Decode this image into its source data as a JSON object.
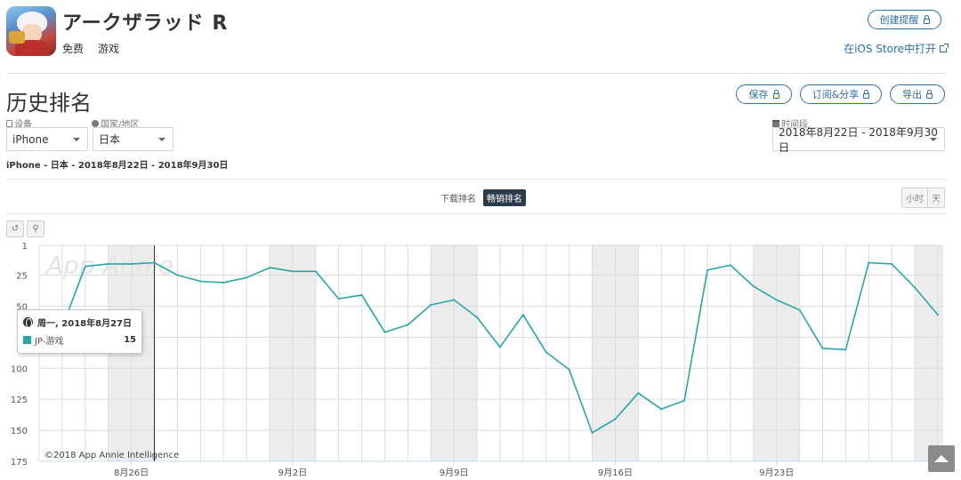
{
  "app": {
    "name": "アークザラッド R",
    "price": "免费",
    "category": "游戏"
  },
  "header": {
    "alert_label": "创建提醒",
    "ios_link": "在iOS Store中打开"
  },
  "section": {
    "title": "历史排名",
    "save_label": "保存",
    "subscribe_label": "订阅&分享",
    "export_label": "导出"
  },
  "filters": {
    "device_label": "设备",
    "device_value": "iPhone",
    "country_label": "国家/地区",
    "country_value": "日本",
    "period_label": "时间段",
    "period_value": "2018年8月22日 - 2018年9月30日"
  },
  "summary": "iPhone - 日本 - 2018年8月22日 - 2018年9月30日",
  "metric_tabs": [
    "下载排名",
    "畅销排名"
  ],
  "granularity": [
    "小时",
    "天"
  ],
  "tooltip": {
    "date": "周一, 2018年8月27日",
    "series": "JP-游戏",
    "value": "15"
  },
  "watermark": "App Annie",
  "copyright": "©2018 App Annie Intelligence",
  "colors": {
    "line": "#2aa6a8",
    "accent": "#2d6fa8",
    "weekend_band": "#ececec"
  },
  "chart_data": {
    "type": "line",
    "ylim": [
      1,
      175
    ],
    "y_reversed": true,
    "y_ticks": [
      "1",
      "25",
      "50",
      "75",
      "100",
      "125",
      "150",
      "175"
    ],
    "x_tick_labels": [
      "8月26日",
      "9月2日",
      "9月9日",
      "9月16日",
      "9月23日"
    ],
    "x": [
      "8/22",
      "8/23",
      "8/24",
      "8/25",
      "8/26",
      "8/27",
      "8/28",
      "8/29",
      "8/30",
      "8/31",
      "9/1",
      "9/2",
      "9/3",
      "9/4",
      "9/5",
      "9/6",
      "9/7",
      "9/8",
      "9/9",
      "9/10",
      "9/11",
      "9/12",
      "9/13",
      "9/14",
      "9/15",
      "9/16",
      "9/17",
      "9/18",
      "9/19",
      "9/20",
      "9/21",
      "9/22",
      "9/23",
      "9/24",
      "9/25",
      "9/26",
      "9/27",
      "9/28",
      "9/29",
      "9/30"
    ],
    "series": [
      {
        "name": "JP-游戏",
        "values": [
          null,
          67,
          18,
          16,
          16,
          15,
          25,
          30,
          31,
          27,
          19,
          22,
          22,
          44,
          41,
          71,
          65,
          49,
          45,
          59,
          83,
          57,
          87,
          101,
          152,
          141,
          120,
          133,
          126,
          21,
          17,
          34,
          45,
          53,
          84,
          85,
          15,
          16,
          35,
          57
        ]
      }
    ],
    "weekend_indices": [
      3,
      4,
      10,
      11,
      17,
      18,
      24,
      25,
      31,
      32,
      38,
      39
    ],
    "hover_index": 5,
    "grid": true
  }
}
